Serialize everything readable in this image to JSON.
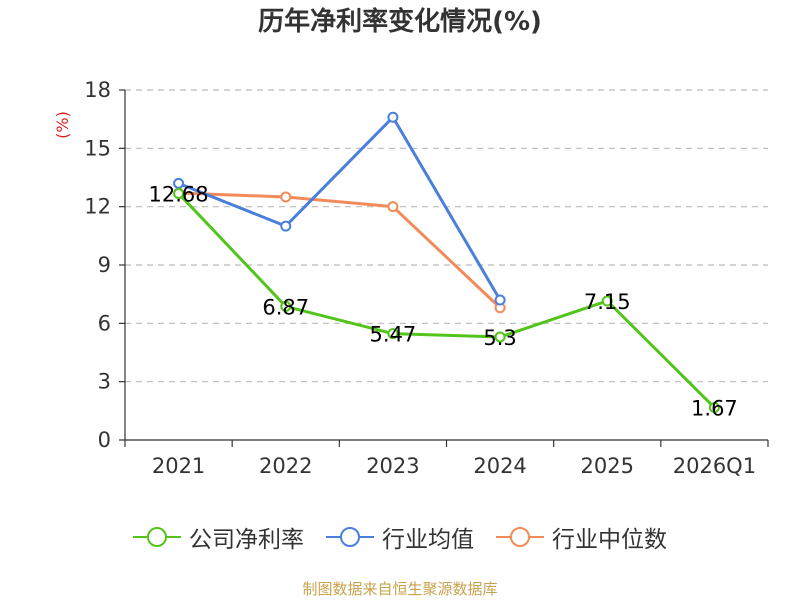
{
  "source_note": "制图数据来自恒生聚源数据库",
  "chart_data": {
    "type": "line",
    "title": "历年净利率变化情况(%)",
    "ylabel": "(%)",
    "xlabel": "",
    "categories": [
      "2021",
      "2022",
      "2023",
      "2024",
      "2025",
      "2026Q1"
    ],
    "ylim": [
      0,
      18
    ],
    "yticks": [
      0,
      3,
      6,
      9,
      12,
      15,
      18
    ],
    "grid": true,
    "legend_position": "bottom",
    "series": [
      {
        "name": "公司净利率",
        "color": "#52c41a",
        "values": [
          12.68,
          6.87,
          5.47,
          5.3,
          7.15,
          1.67
        ],
        "labels": [
          "12.68",
          "6.87",
          "5.47",
          "5.3",
          "7.15",
          "1.67"
        ]
      },
      {
        "name": "行业均值",
        "color": "#4a7fdc",
        "values": [
          13.2,
          11.0,
          16.6,
          7.2,
          null,
          null
        ]
      },
      {
        "name": "行业中位数",
        "color": "#f28b5a",
        "values": [
          12.7,
          12.5,
          12.0,
          6.8,
          null,
          null
        ]
      }
    ]
  }
}
